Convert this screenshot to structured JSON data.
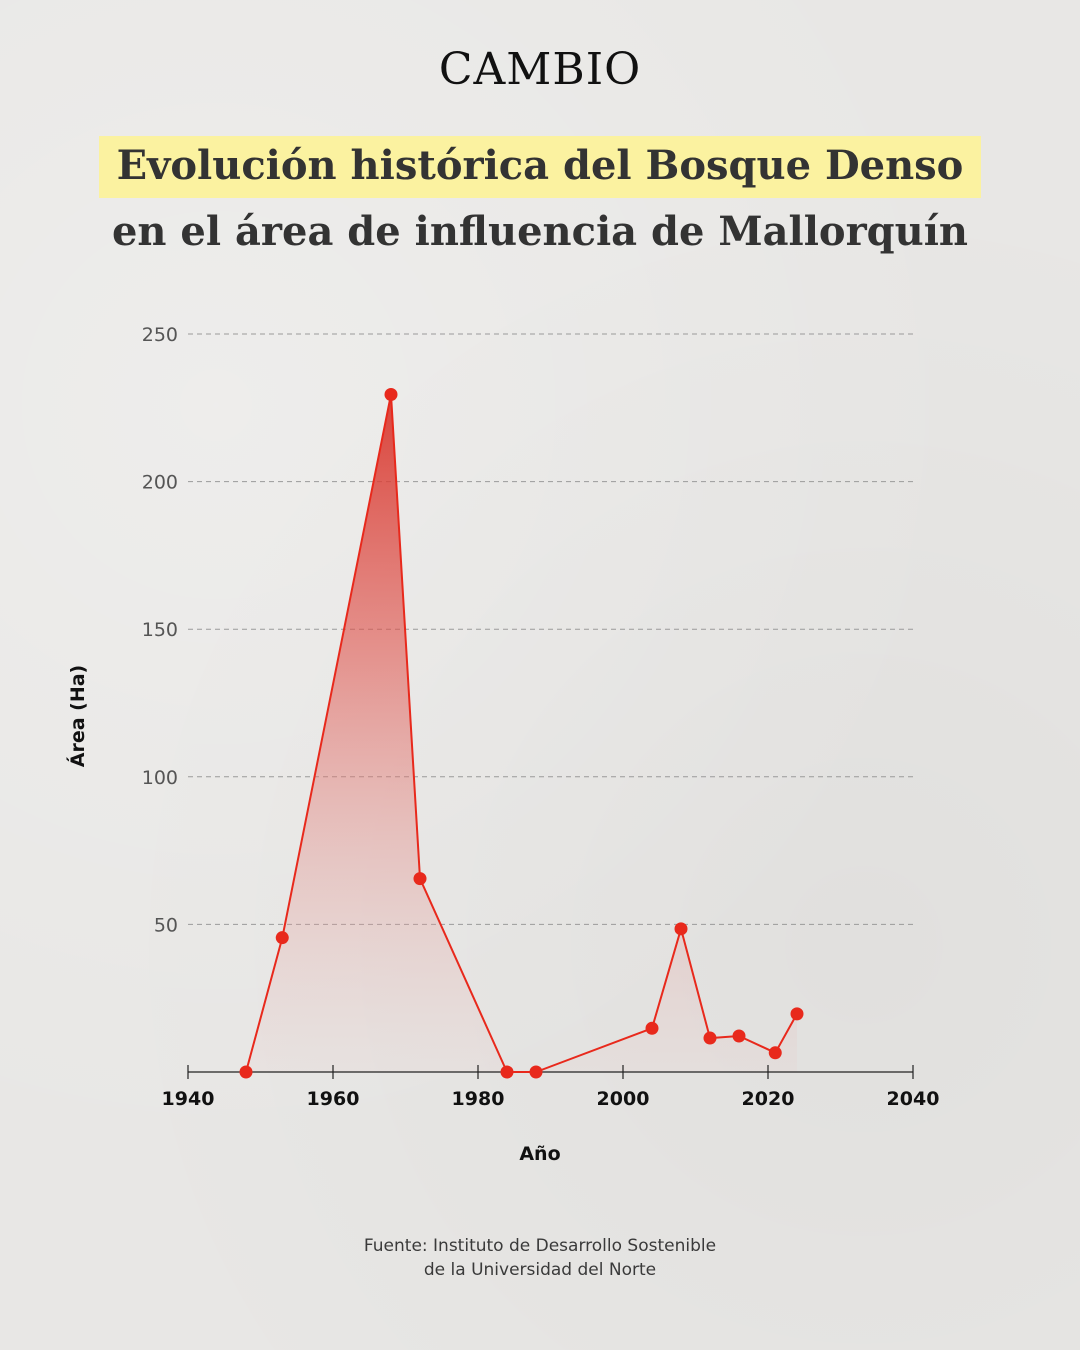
{
  "brand": {
    "logo_text": "CAMBIO"
  },
  "title": {
    "line1": "Evolución histórica del Bosque Denso",
    "line2": "en el área de influencia de Mallorquín"
  },
  "colors": {
    "accent": "#e8291c",
    "highlight": "#fbf2a0",
    "grid": "#9a9a9a",
    "text": "#333333"
  },
  "chart_data": {
    "type": "area",
    "xlabel": "Año",
    "ylabel": "Área (Ha)",
    "xlim": [
      1940,
      2040
    ],
    "ylim": [
      0,
      250
    ],
    "x_ticks": [
      1940,
      1960,
      1980,
      2000,
      2020,
      2040
    ],
    "y_ticks": [
      50,
      100,
      150,
      200,
      250
    ],
    "grid": "horizontal-dashed",
    "series": [
      {
        "points": [
          {
            "x": 1948,
            "y": 0
          },
          {
            "x": 1953,
            "y": 45.5
          },
          {
            "x": 1968,
            "y": 229.5
          },
          {
            "x": 1972,
            "y": 65.5
          },
          {
            "x": 1984,
            "y": 0
          },
          {
            "x": 1988,
            "y": 0
          },
          {
            "x": 2004,
            "y": 14.8
          },
          {
            "x": 2008,
            "y": 48.5
          },
          {
            "x": 2012,
            "y": 11.5
          },
          {
            "x": 2016,
            "y": 12.2
          },
          {
            "x": 2021,
            "y": 6.5
          },
          {
            "x": 2024,
            "y": 19.7
          }
        ]
      }
    ]
  },
  "source": {
    "line1": "Fuente: Instituto de Desarrollo Sostenible",
    "line2": "de la Universidad del Norte"
  }
}
